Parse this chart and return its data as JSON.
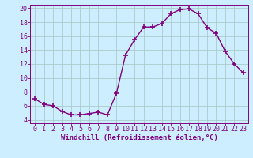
{
  "x": [
    0,
    1,
    2,
    3,
    4,
    5,
    6,
    7,
    8,
    9,
    10,
    11,
    12,
    13,
    14,
    15,
    16,
    17,
    18,
    19,
    20,
    21,
    22,
    23
  ],
  "y": [
    7.0,
    6.2,
    6.0,
    5.2,
    4.7,
    4.7,
    4.9,
    5.1,
    4.7,
    7.8,
    13.3,
    15.5,
    17.3,
    17.3,
    17.8,
    19.2,
    19.8,
    19.9,
    19.2,
    17.2,
    16.4,
    13.8,
    12.0,
    10.7
  ],
  "line_color": "#800080",
  "marker": "+",
  "marker_size": 5,
  "marker_lw": 1.2,
  "line_width": 1.0,
  "xlabel": "Windchill (Refroidissement éolien,°C)",
  "xlim": [
    -0.5,
    23.5
  ],
  "ylim": [
    3.5,
    20.5
  ],
  "yticks": [
    4,
    6,
    8,
    10,
    12,
    14,
    16,
    18,
    20
  ],
  "xticks": [
    0,
    1,
    2,
    3,
    4,
    5,
    6,
    7,
    8,
    9,
    10,
    11,
    12,
    13,
    14,
    15,
    16,
    17,
    18,
    19,
    20,
    21,
    22,
    23
  ],
  "bg_color": "#cceeff",
  "grid_color": "#aacccc",
  "tick_color": "#800080",
  "label_color": "#800080",
  "spine_color": "#800080",
  "font_size_xlabel": 6.5,
  "font_size_ticks": 6.0
}
